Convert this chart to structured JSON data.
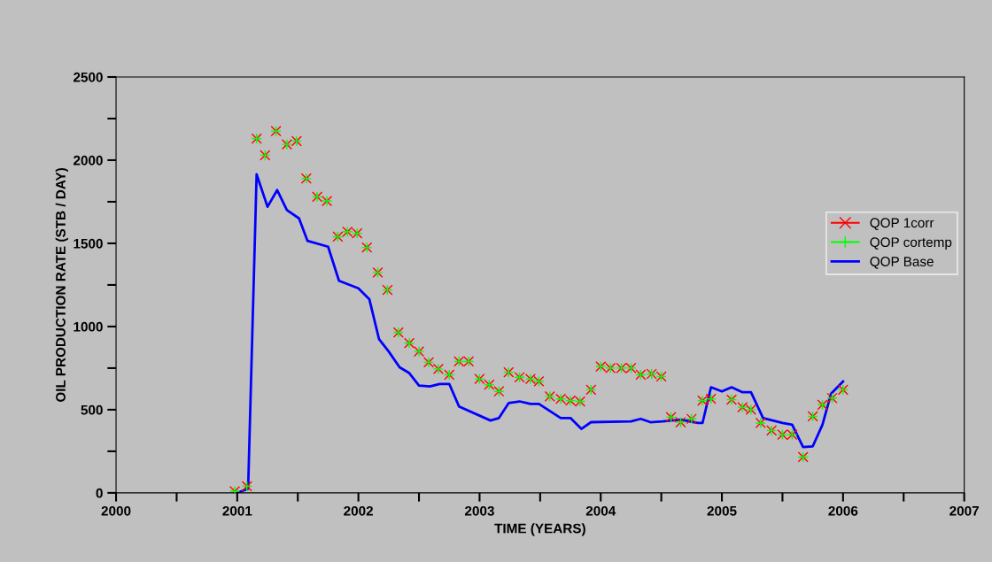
{
  "chart_data": {
    "type": "scatter",
    "xlabel": "TIME (YEARS)",
    "ylabel": "OIL PRODUCTION RATE (STB / DAY)",
    "xlim": [
      2000,
      2007
    ],
    "ylim": [
      0,
      2500
    ],
    "xticks": [
      2000,
      {
        "value": 2000.5,
        "label": null
      },
      2001,
      {
        "value": 2001.5,
        "label": null
      },
      2002,
      {
        "value": 2002.5,
        "label": null
      },
      2003,
      {
        "value": 2003.5,
        "label": null
      },
      2004,
      {
        "value": 2004.5,
        "label": null
      },
      2005,
      {
        "value": 2005.5,
        "label": null
      },
      2006,
      {
        "value": 2006.5,
        "label": null
      },
      2007
    ],
    "yticks": [
      0,
      {
        "value": 250,
        "label": null
      },
      500,
      {
        "value": 750,
        "label": null
      },
      1000,
      {
        "value": 1250,
        "label": null
      },
      1500,
      {
        "value": 1750,
        "label": null
      },
      2000,
      {
        "value": 2250,
        "label": null
      },
      2500
    ],
    "grid": false,
    "legend": "right",
    "x": [
      2000.98,
      2001.08,
      2001.16,
      2001.23,
      2001.32,
      2001.41,
      2001.49,
      2001.57,
      2001.66,
      2001.74,
      2001.83,
      2001.91,
      2001.99,
      2002.07,
      2002.16,
      2002.24,
      2002.33,
      2002.42,
      2002.5,
      2002.58,
      2002.66,
      2002.75,
      2002.83,
      2002.91,
      2003.0,
      2003.08,
      2003.16,
      2003.24,
      2003.33,
      2003.42,
      2003.49,
      2003.58,
      2003.67,
      2003.75,
      2003.83,
      2003.92,
      2004.0,
      2004.08,
      2004.17,
      2004.25,
      2004.33,
      2004.42,
      2004.5,
      2004.58,
      2004.66,
      2004.75,
      2004.84,
      2004.91,
      2005.08,
      2005.17,
      2005.24,
      2005.32,
      2005.41,
      2005.5,
      2005.58,
      2005.67,
      2005.75,
      2005.83,
      2005.91,
      2006.0
    ],
    "series": [
      {
        "name": "QOP 1corr",
        "color": "#ff0000",
        "marker": "cross",
        "values": [
          10,
          40,
          2130,
          2030,
          2175,
          2095,
          2115,
          1890,
          1780,
          1755,
          1540,
          1570,
          1560,
          1475,
          1325,
          1220,
          965,
          900,
          850,
          785,
          745,
          710,
          790,
          790,
          685,
          650,
          610,
          725,
          695,
          685,
          670,
          580,
          565,
          555,
          550,
          620,
          760,
          750,
          750,
          750,
          710,
          715,
          700,
          455,
          425,
          445,
          555,
          565,
          560,
          515,
          500,
          420,
          375,
          350,
          350,
          215,
          460,
          530,
          570,
          620
        ]
      },
      {
        "name": "QOP cortemp",
        "color": "#00ff00",
        "marker": "plus",
        "values": [
          10,
          40,
          2130,
          2030,
          2175,
          2095,
          2115,
          1890,
          1780,
          1755,
          1540,
          1570,
          1560,
          1475,
          1325,
          1220,
          965,
          900,
          850,
          785,
          745,
          710,
          790,
          790,
          685,
          650,
          610,
          725,
          695,
          685,
          670,
          580,
          565,
          555,
          550,
          620,
          760,
          750,
          750,
          750,
          710,
          715,
          700,
          455,
          425,
          445,
          555,
          565,
          560,
          515,
          500,
          420,
          375,
          350,
          350,
          215,
          460,
          530,
          570,
          620
        ]
      },
      {
        "name": "QOP Base",
        "color": "#0000ff",
        "type": "line",
        "marker": "none",
        "line_style": "solid",
        "x": [
          2001.0,
          2001.09,
          2001.16,
          2001.25,
          2001.33,
          2001.41,
          2001.51,
          2001.58,
          2001.75,
          2001.84,
          2002.0,
          2002.09,
          2002.17,
          2002.25,
          2002.34,
          2002.42,
          2002.5,
          2002.59,
          2002.67,
          2002.75,
          2002.83,
          2003.09,
          2003.16,
          2003.24,
          2003.33,
          2003.42,
          2003.49,
          2003.67,
          2003.75,
          2003.84,
          2003.92,
          2004.25,
          2004.33,
          2004.41,
          2004.51,
          2004.66,
          2004.8,
          2004.84,
          2004.91,
          2005.0,
          2005.08,
          2005.17,
          2005.24,
          2005.34,
          2005.5,
          2005.58,
          2005.67,
          2005.75,
          2005.83,
          2005.9,
          2006.0
        ],
        "values": [
          0,
          25,
          1915,
          1720,
          1820,
          1700,
          1650,
          1515,
          1480,
          1275,
          1230,
          1165,
          925,
          850,
          755,
          720,
          645,
          640,
          655,
          655,
          520,
          435,
          450,
          540,
          550,
          535,
          535,
          450,
          450,
          385,
          425,
          430,
          445,
          425,
          430,
          440,
          420,
          420,
          635,
          610,
          635,
          605,
          605,
          450,
          420,
          410,
          275,
          280,
          410,
          595,
          670
        ]
      }
    ]
  }
}
